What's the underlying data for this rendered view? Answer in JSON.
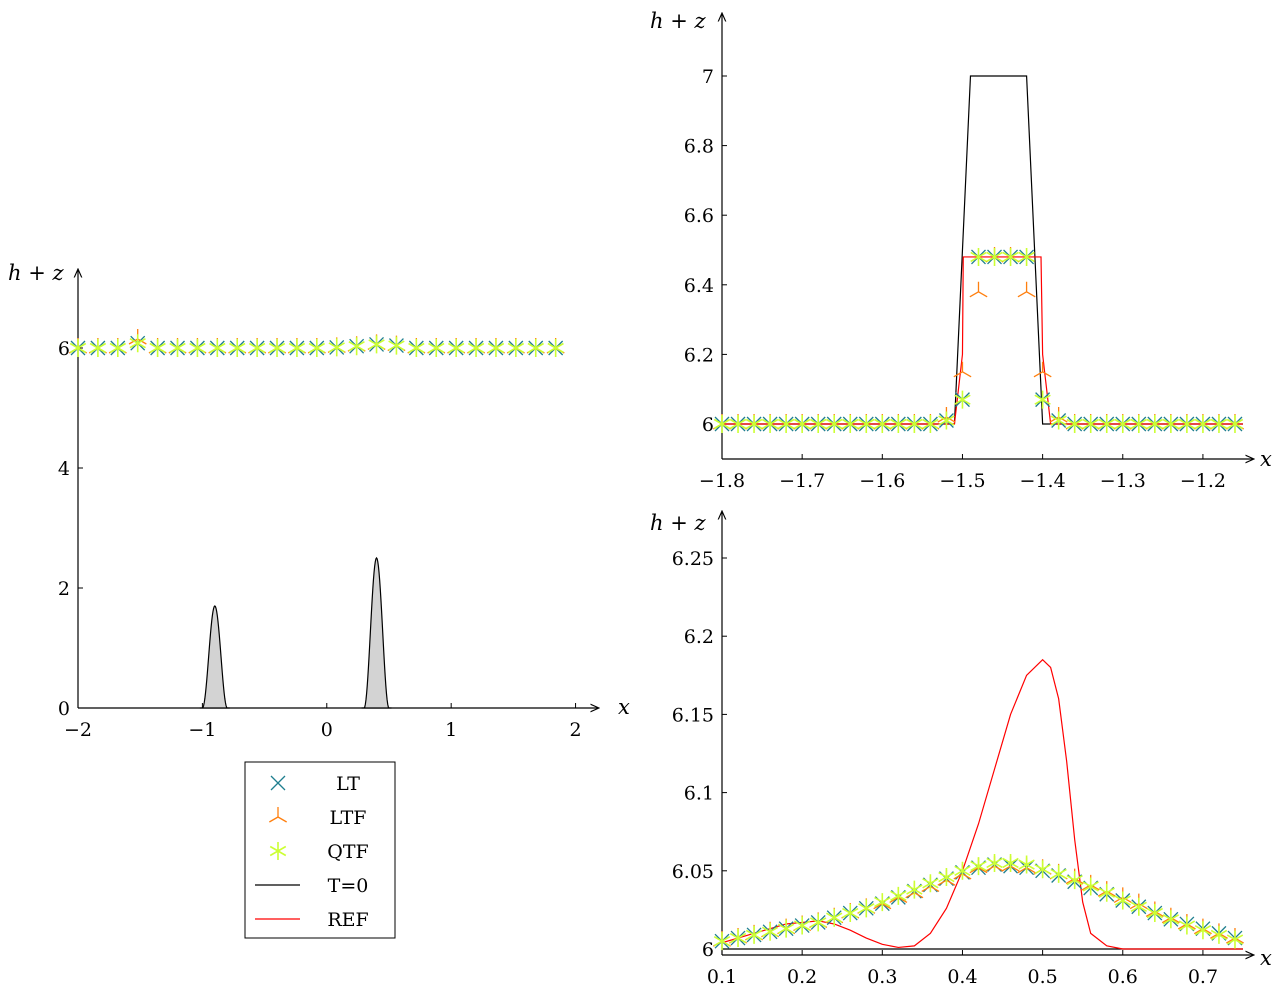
{
  "colors": {
    "LT": "#1f7f8f",
    "LTF": "#ff7f0e",
    "QTF": "#ccff33",
    "T0": "#000000",
    "REF": "#ff0000",
    "bottom": "#d3d3d3"
  },
  "legend": {
    "placement": "below left panel",
    "items": [
      {
        "key": "LT",
        "label": "LT",
        "marker": "x-icon"
      },
      {
        "key": "LTF",
        "label": "LTF",
        "marker": "tri-y-icon"
      },
      {
        "key": "QTF",
        "label": "QTF",
        "marker": "asterisk-icon"
      },
      {
        "key": "T0",
        "label": "T=0",
        "marker": "line"
      },
      {
        "key": "REF",
        "label": "REF",
        "marker": "line"
      }
    ]
  },
  "chart_data": [
    {
      "type": "line",
      "xlabel": "x",
      "ylabel": "h + z",
      "xlim": [
        -2,
        2.1
      ],
      "ylim": [
        0,
        7
      ],
      "xticks": [
        -2,
        -1,
        0,
        1,
        2
      ],
      "xtick_labels": [
        "−2",
        "−1",
        "0",
        "1",
        "2"
      ],
      "yticks": [
        0,
        2,
        4,
        6
      ],
      "ytick_labels": [
        "0",
        "2",
        "4",
        "6"
      ],
      "bottom": {
        "bumps": [
          {
            "center": -0.9,
            "height": 1.7,
            "halfwidth": 0.1
          },
          {
            "center": 0.4,
            "height": 2.5,
            "halfwidth": 0.1
          }
        ]
      },
      "markers": {
        "x": [
          -2.0,
          -1.84,
          -1.68,
          -1.52,
          -1.36,
          -1.2,
          -1.04,
          -0.88,
          -0.72,
          -0.56,
          -0.4,
          -0.24,
          -0.08,
          0.08,
          0.24,
          0.4,
          0.56,
          0.72,
          0.88,
          1.04,
          1.2,
          1.36,
          1.52,
          1.68,
          1.84
        ],
        "LT": [
          6.0,
          6.0,
          6.0,
          6.08,
          6.0,
          6.0,
          6.0,
          6.0,
          6.0,
          6.0,
          6.0,
          6.0,
          6.0,
          6.01,
          6.03,
          6.06,
          6.04,
          6.0,
          6.0,
          6.0,
          6.0,
          6.0,
          6.0,
          6.0,
          6.0
        ],
        "LTF": [
          6.0,
          6.0,
          6.0,
          6.15,
          6.0,
          6.0,
          6.0,
          6.0,
          6.0,
          6.0,
          6.0,
          6.0,
          6.0,
          6.01,
          6.03,
          6.06,
          6.04,
          6.0,
          6.0,
          6.0,
          6.0,
          6.0,
          6.0,
          6.0,
          6.0
        ],
        "QTF": [
          6.0,
          6.0,
          6.0,
          6.08,
          6.0,
          6.0,
          6.0,
          6.0,
          6.0,
          6.0,
          6.0,
          6.0,
          6.0,
          6.01,
          6.03,
          6.06,
          6.04,
          6.0,
          6.0,
          6.0,
          6.0,
          6.0,
          6.0,
          6.0,
          6.0
        ]
      }
    },
    {
      "type": "line",
      "xlabel": "x",
      "ylabel": "h + z",
      "xlim": [
        -1.8,
        -1.15
      ],
      "ylim": [
        5.9,
        7.15
      ],
      "xticks": [
        -1.8,
        -1.7,
        -1.6,
        -1.5,
        -1.4,
        -1.3,
        -1.2
      ],
      "xtick_labels": [
        "−1.8",
        "−1.7",
        "−1.6",
        "−1.5",
        "−1.4",
        "−1.3",
        "−1.2"
      ],
      "yticks": [
        6,
        6.2,
        6.4,
        6.6,
        6.8,
        7
      ],
      "ytick_labels": [
        "6",
        "6.2",
        "6.4",
        "6.6",
        "6.8",
        "7"
      ],
      "T0": {
        "x": [
          -1.8,
          -1.51,
          -1.49,
          -1.42,
          -1.4,
          -1.15
        ],
        "y": [
          6.0,
          6.0,
          7.0,
          7.0,
          6.0,
          6.0
        ]
      },
      "REF": {
        "x": [
          -1.8,
          -1.51,
          -1.5,
          -1.499,
          -1.402,
          -1.4,
          -1.39,
          -1.15
        ],
        "y": [
          6.0,
          6.0,
          6.2,
          6.48,
          6.48,
          6.2,
          6.0,
          6.0
        ]
      },
      "markers": {
        "x": [
          -1.8,
          -1.78,
          -1.76,
          -1.74,
          -1.72,
          -1.7,
          -1.68,
          -1.66,
          -1.64,
          -1.62,
          -1.6,
          -1.58,
          -1.56,
          -1.54,
          -1.52,
          -1.5,
          -1.48,
          -1.46,
          -1.44,
          -1.42,
          -1.4,
          -1.38,
          -1.36,
          -1.34,
          -1.32,
          -1.3,
          -1.28,
          -1.26,
          -1.24,
          -1.22,
          -1.2,
          -1.18,
          -1.16
        ],
        "LT": [
          6.0,
          6.0,
          6.0,
          6.0,
          6.0,
          6.0,
          6.0,
          6.0,
          6.0,
          6.0,
          6.0,
          6.0,
          6.0,
          6.0,
          6.01,
          6.07,
          6.48,
          6.48,
          6.48,
          6.48,
          6.07,
          6.01,
          6.0,
          6.0,
          6.0,
          6.0,
          6.0,
          6.0,
          6.0,
          6.0,
          6.0,
          6.0,
          6.0
        ],
        "LTF": [
          6.0,
          6.0,
          6.0,
          6.0,
          6.0,
          6.0,
          6.0,
          6.0,
          6.0,
          6.0,
          6.0,
          6.0,
          6.0,
          6.0,
          6.02,
          6.15,
          6.38,
          6.48,
          6.48,
          6.38,
          6.15,
          6.02,
          6.0,
          6.0,
          6.0,
          6.0,
          6.0,
          6.0,
          6.0,
          6.0,
          6.0,
          6.0,
          6.0
        ],
        "QTF": [
          6.0,
          6.0,
          6.0,
          6.0,
          6.0,
          6.0,
          6.0,
          6.0,
          6.0,
          6.0,
          6.0,
          6.0,
          6.0,
          6.0,
          6.01,
          6.07,
          6.48,
          6.48,
          6.48,
          6.48,
          6.07,
          6.01,
          6.0,
          6.0,
          6.0,
          6.0,
          6.0,
          6.0,
          6.0,
          6.0,
          6.0,
          6.0,
          6.0
        ]
      }
    },
    {
      "type": "line",
      "xlabel": "x",
      "ylabel": "h + z",
      "xlim": [
        0.1,
        0.75
      ],
      "ylim": [
        5.997,
        6.262
      ],
      "xticks": [
        0.1,
        0.2,
        0.3,
        0.4,
        0.5,
        0.6,
        0.7
      ],
      "xtick_labels": [
        "0.1",
        "0.2",
        "0.3",
        "0.4",
        "0.5",
        "0.6",
        "0.7"
      ],
      "yticks": [
        6,
        6.05,
        6.1,
        6.15,
        6.2,
        6.25
      ],
      "ytick_labels": [
        "6",
        "6.05",
        "6.1",
        "6.15",
        "6.2",
        "6.25"
      ],
      "T0": {
        "x": [
          0.1,
          0.75
        ],
        "y": [
          6.0,
          6.0
        ]
      },
      "REF": {
        "x": [
          0.1,
          0.12,
          0.14,
          0.16,
          0.18,
          0.2,
          0.22,
          0.24,
          0.26,
          0.28,
          0.3,
          0.32,
          0.34,
          0.36,
          0.38,
          0.4,
          0.42,
          0.44,
          0.46,
          0.48,
          0.5,
          0.51,
          0.52,
          0.53,
          0.54,
          0.55,
          0.56,
          0.58,
          0.6,
          0.65,
          0.7,
          0.75
        ],
        "y": [
          6.004,
          6.007,
          6.01,
          6.013,
          6.016,
          6.017,
          6.018,
          6.016,
          6.012,
          6.007,
          6.003,
          6.001,
          6.002,
          6.01,
          6.026,
          6.05,
          6.08,
          6.115,
          6.15,
          6.175,
          6.185,
          6.18,
          6.16,
          6.12,
          6.07,
          6.03,
          6.01,
          6.002,
          6.0,
          6.0,
          6.0,
          6.0
        ]
      },
      "markers": {
        "x": [
          0.1,
          0.12,
          0.14,
          0.16,
          0.18,
          0.2,
          0.22,
          0.24,
          0.26,
          0.28,
          0.3,
          0.32,
          0.34,
          0.36,
          0.38,
          0.4,
          0.42,
          0.44,
          0.46,
          0.48,
          0.5,
          0.52,
          0.54,
          0.56,
          0.58,
          0.6,
          0.62,
          0.64,
          0.66,
          0.68,
          0.7,
          0.72,
          0.74
        ],
        "LT": [
          6.005,
          6.007,
          6.009,
          6.011,
          6.013,
          6.015,
          6.017,
          6.02,
          6.023,
          6.026,
          6.029,
          6.033,
          6.037,
          6.041,
          6.045,
          6.049,
          6.052,
          6.054,
          6.053,
          6.052,
          6.05,
          6.047,
          6.043,
          6.039,
          6.035,
          6.031,
          6.027,
          6.023,
          6.019,
          6.016,
          6.013,
          6.01,
          6.007
        ],
        "LTF": [
          6.005,
          6.007,
          6.009,
          6.011,
          6.013,
          6.015,
          6.017,
          6.02,
          6.023,
          6.026,
          6.029,
          6.033,
          6.036,
          6.04,
          6.044,
          6.048,
          6.052,
          6.053,
          6.053,
          6.052,
          6.051,
          6.048,
          6.045,
          6.041,
          6.037,
          6.033,
          6.029,
          6.024,
          6.02,
          6.016,
          6.013,
          6.01,
          6.007
        ],
        "QTF": [
          6.005,
          6.007,
          6.009,
          6.011,
          6.013,
          6.015,
          6.017,
          6.02,
          6.023,
          6.026,
          6.03,
          6.034,
          6.038,
          6.042,
          6.046,
          6.05,
          6.053,
          6.055,
          6.055,
          6.054,
          6.051,
          6.048,
          6.044,
          6.04,
          6.036,
          6.031,
          6.027,
          6.023,
          6.019,
          6.015,
          6.012,
          6.009,
          6.006
        ]
      }
    }
  ]
}
